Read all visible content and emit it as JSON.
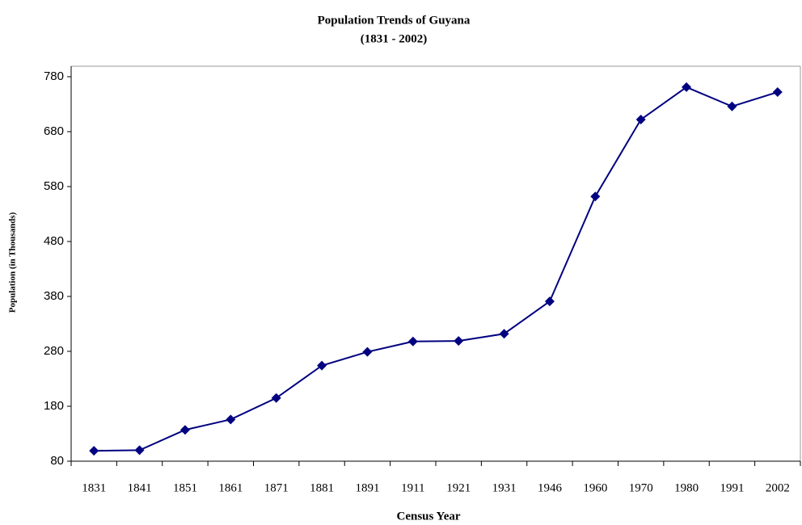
{
  "chart_data": {
    "type": "line",
    "title": "Population Trends of Guyana",
    "subtitle": "(1831 - 2002)",
    "x_label": "Census Year",
    "y_label": "Population (in Thousands)",
    "categories": [
      "1831",
      "1841",
      "1851",
      "1861",
      "1871",
      "1881",
      "1891",
      "1911",
      "1921",
      "1931",
      "1946",
      "1960",
      "1970",
      "1980",
      "1991",
      "2002"
    ],
    "series": [
      {
        "name": "Population",
        "color": "#000080",
        "values": [
          99,
          100,
          137,
          156,
          195,
          254,
          279,
          298,
          299,
          312,
          371,
          562,
          702,
          761,
          726,
          752
        ]
      }
    ],
    "ylim": [
      80,
      780
    ],
    "yticks": [
      80,
      180,
      280,
      380,
      480,
      580,
      680,
      780
    ]
  }
}
